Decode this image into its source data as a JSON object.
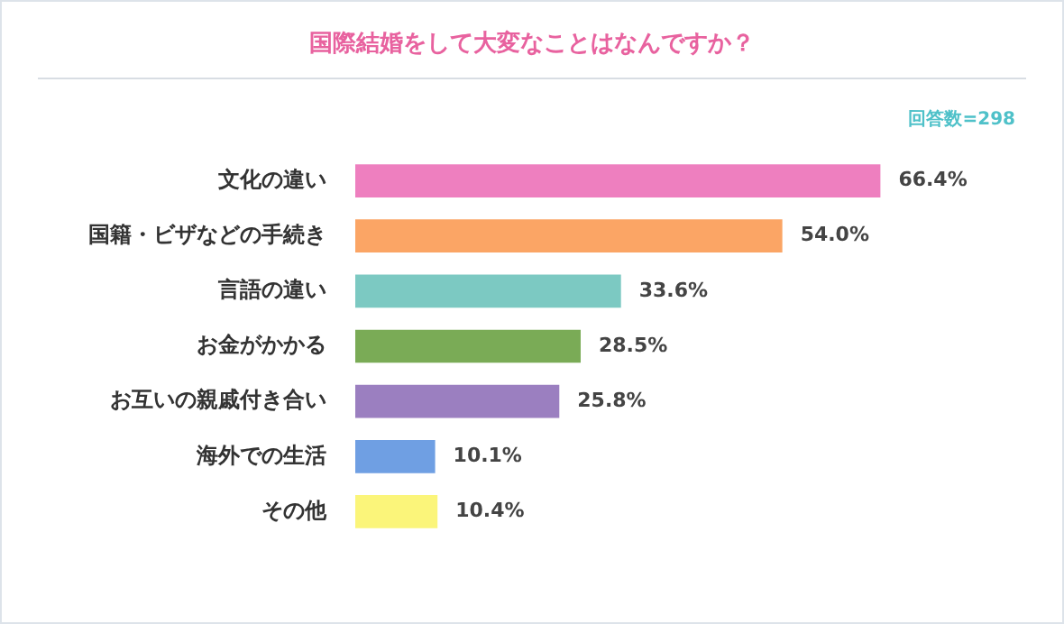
{
  "chart_data": {
    "type": "bar",
    "orientation": "horizontal",
    "title": "国際結婚をして大変なことはなんですか？",
    "annotations": [
      "回答数=298"
    ],
    "categories": [
      "文化の違い",
      "国籍・ビザなどの手続き",
      "言語の違い",
      "お金がかかる",
      "お互いの親戚付き合い",
      "海外での生活",
      "その他"
    ],
    "values": [
      66.4,
      54.0,
      33.6,
      28.5,
      25.8,
      10.1,
      10.4
    ],
    "colors": [
      "#ee7fbf",
      "#fba565",
      "#7cc9c2",
      "#7aab56",
      "#9b7fc0",
      "#6f9fe3",
      "#fbf57a"
    ],
    "value_labels": [
      "66.4%",
      "54.0%",
      "33.6%",
      "28.5%",
      "25.8%",
      "10.1%",
      "10.4%"
    ],
    "legend": false
  }
}
